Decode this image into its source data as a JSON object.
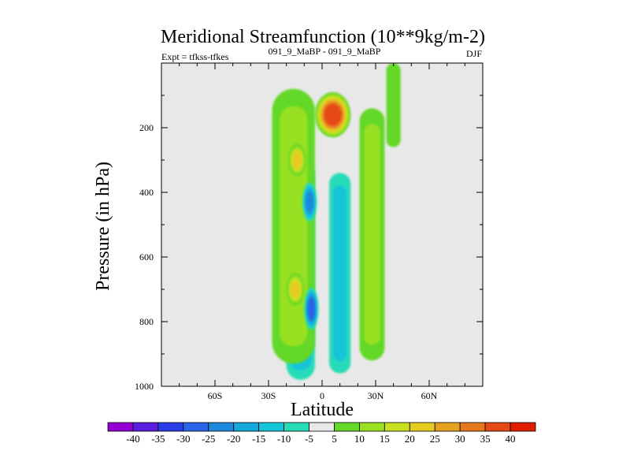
{
  "chart_data": {
    "type": "heatmap",
    "title": "Meridional Streamfunction (10**9kg/m-2)",
    "subtitle_left": "Expt = tfkss-tfkes",
    "subtitle_center": "091_9_MaBP - 091_9_MaBP",
    "subtitle_right": "DJF",
    "xlabel": "Latitude",
    "ylabel": "Pressure (in hPa)",
    "xlim": [
      -90,
      90
    ],
    "ylim": [
      1000,
      0
    ],
    "x_ticks": [
      {
        "value": -60,
        "label": "60S"
      },
      {
        "value": -30,
        "label": "30S"
      },
      {
        "value": 0,
        "label": "0"
      },
      {
        "value": 30,
        "label": "30N"
      },
      {
        "value": 60,
        "label": "60N"
      }
    ],
    "y_ticks": [
      {
        "value": 200,
        "label": "200"
      },
      {
        "value": 400,
        "label": "400"
      },
      {
        "value": 600,
        "label": "600"
      },
      {
        "value": 800,
        "label": "800"
      },
      {
        "value": 1000,
        "label": "1000"
      }
    ],
    "background_color": "#e8e8e8",
    "colorbar": {
      "labels": [
        "-40",
        "-35",
        "-30",
        "-25",
        "-20",
        "-15",
        "-10",
        "-5",
        "5",
        "10",
        "15",
        "20",
        "25",
        "30",
        "35",
        "40"
      ],
      "colors": [
        "#9400d3",
        "#5a1ee0",
        "#2a3ce8",
        "#2a64e8",
        "#1e88dc",
        "#14a8dc",
        "#14c4d8",
        "#28dcb8",
        "#e8e8e8",
        "#64d828",
        "#98e020",
        "#c8e020",
        "#e6cc20",
        "#e6a020",
        "#e67820",
        "#e64a14",
        "#e01e00"
      ]
    },
    "features": [
      {
        "kind": "band",
        "lat": -12,
        "p_top": 300,
        "p_bot": 980,
        "width": 16,
        "value": -15
      },
      {
        "kind": "band",
        "lat": 10,
        "p_top": 340,
        "p_bot": 960,
        "width": 12,
        "value": -10
      },
      {
        "kind": "band",
        "lat": -16,
        "p_top": 80,
        "p_bot": 930,
        "width": 24,
        "value": 10
      },
      {
        "kind": "band",
        "lat": 28,
        "p_top": 140,
        "p_bot": 920,
        "width": 14,
        "value": 10
      },
      {
        "kind": "band",
        "lat": 40,
        "p_top": 0,
        "p_bot": 260,
        "width": 8,
        "value": 5
      },
      {
        "kind": "blob",
        "lat": 6,
        "p": 160,
        "width": 20,
        "height": 140,
        "value": 35
      },
      {
        "kind": "blob",
        "lat": -14,
        "p": 300,
        "width": 10,
        "height": 100,
        "value": 20
      },
      {
        "kind": "blob",
        "lat": -15,
        "p": 700,
        "width": 10,
        "height": 100,
        "value": 20
      },
      {
        "kind": "blob",
        "lat": -7,
        "p": 430,
        "width": 8,
        "height": 120,
        "value": -20
      },
      {
        "kind": "blob",
        "lat": -6,
        "p": 760,
        "width": 8,
        "height": 130,
        "value": -25
      }
    ]
  }
}
